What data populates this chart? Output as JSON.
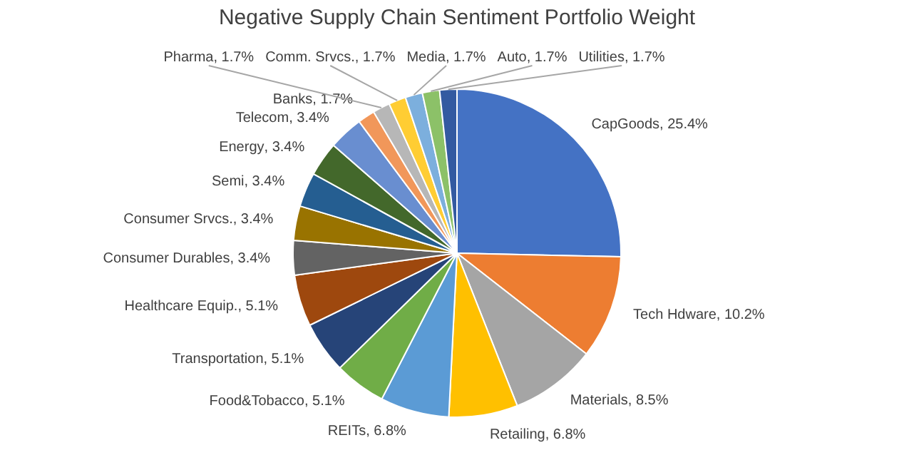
{
  "chart_data": {
    "type": "pie",
    "title": "Negative Supply Chain Sentiment Portfolio Weight",
    "categories": [
      "CapGoods",
      "Tech Hdware",
      "Materials",
      "Retailing",
      "REITs",
      "Food&Tobacco",
      "Transportation",
      "Healthcare Equip.",
      "Consumer Durables",
      "Consumer Srvcs.",
      "Semi",
      "Energy",
      "Telecom",
      "Banks",
      "Pharma",
      "Comm. Srvcs.",
      "Media",
      "Auto",
      "Utilities"
    ],
    "values": [
      25.4,
      10.2,
      8.5,
      6.8,
      6.8,
      5.1,
      5.1,
      5.1,
      3.4,
      3.4,
      3.4,
      3.4,
      3.4,
      1.7,
      1.7,
      1.7,
      1.7,
      1.7,
      1.7
    ],
    "colors": [
      "#4472c4",
      "#ed7d31",
      "#a5a5a5",
      "#ffc000",
      "#5b9bd5",
      "#70ad47",
      "#264478",
      "#9e480e",
      "#636363",
      "#997300",
      "#255e91",
      "#43682b",
      "#698ed0",
      "#f1975a",
      "#b7b7b7",
      "#ffcd33",
      "#7cafdd",
      "#8cc168",
      "#335aa1"
    ],
    "value_labels": [
      ", 25.4%",
      ", 10.2%",
      ", 8.5%",
      ", 6.8%",
      ", 6.8%",
      ", 5.1%",
      ", 5.1%",
      ", 5.1%",
      ", 3.4%",
      ", 3.4%",
      ", 3.4%",
      ", 3.4%",
      ", 3.4%",
      ", 1.7%",
      ", 1.7%",
      ", 1.7%",
      ", 1.7%",
      ", 1.7%",
      ", 1.7%"
    ],
    "legend": false
  }
}
